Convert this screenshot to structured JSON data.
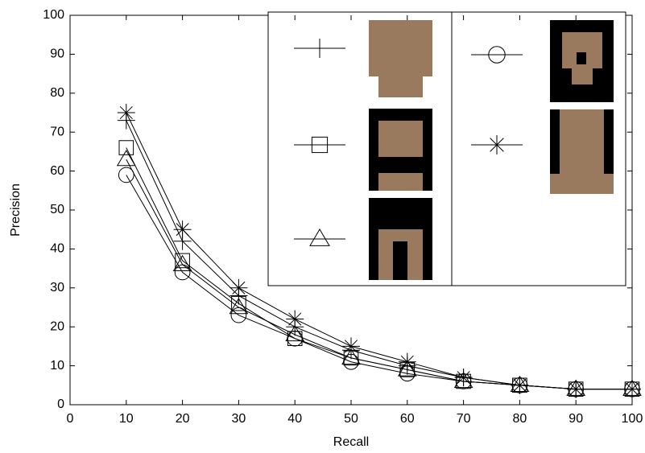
{
  "chart_data": {
    "type": "line",
    "x_label": "Recall",
    "y_label": "Precision",
    "x": [
      10,
      20,
      30,
      40,
      50,
      60,
      70,
      80,
      90,
      100
    ],
    "series": [
      {
        "marker": "plus",
        "color": "#000000",
        "values": [
          73,
          42,
          28,
          20,
          14,
          10,
          7,
          5,
          4,
          4
        ]
      },
      {
        "marker": "square",
        "color": "#000000",
        "values": [
          66,
          37,
          26,
          17,
          12,
          9,
          6,
          5,
          4,
          4
        ]
      },
      {
        "marker": "triangle",
        "color": "#000000",
        "values": [
          63,
          36,
          25,
          18,
          12,
          9,
          6,
          5,
          4,
          4
        ]
      },
      {
        "marker": "circle",
        "color": "#000000",
        "values": [
          59,
          34,
          23,
          17,
          11,
          8,
          6,
          5,
          4,
          4
        ]
      },
      {
        "marker": "asterisk",
        "color": "#000000",
        "values": [
          75,
          45,
          30,
          22,
          15,
          11,
          7,
          5,
          4,
          4
        ]
      }
    ],
    "xlim": [
      0,
      100
    ],
    "ylim": [
      0,
      100
    ],
    "xticks": [
      0,
      10,
      20,
      30,
      40,
      50,
      60,
      70,
      80,
      90,
      100
    ],
    "yticks": [
      0,
      10,
      20,
      30,
      40,
      50,
      60,
      70,
      80,
      90,
      100
    ],
    "grid": false
  }
}
